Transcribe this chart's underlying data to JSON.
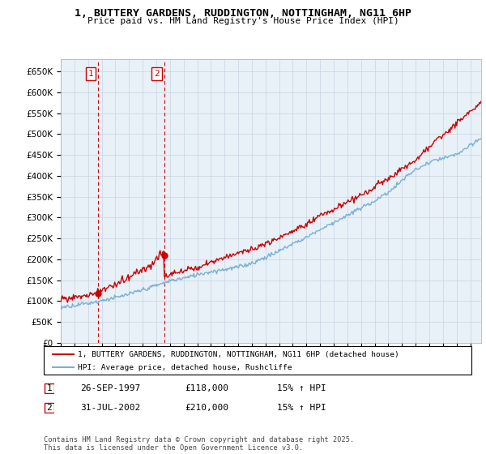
{
  "title": "1, BUTTERY GARDENS, RUDDINGTON, NOTTINGHAM, NG11 6HP",
  "subtitle": "Price paid vs. HM Land Registry's House Price Index (HPI)",
  "ylabel_ticks": [
    "£0",
    "£50K",
    "£100K",
    "£150K",
    "£200K",
    "£250K",
    "£300K",
    "£350K",
    "£400K",
    "£450K",
    "£500K",
    "£550K",
    "£600K",
    "£650K"
  ],
  "ytick_values": [
    0,
    50000,
    100000,
    150000,
    200000,
    250000,
    300000,
    350000,
    400000,
    450000,
    500000,
    550000,
    600000,
    650000
  ],
  "ylim": [
    0,
    680000
  ],
  "xlim_start": 1995.0,
  "xlim_end": 2025.8,
  "sale1_date": 1997.74,
  "sale1_price": 118000,
  "sale2_date": 2002.58,
  "sale2_price": 210000,
  "legend_line1": "1, BUTTERY GARDENS, RUDDINGTON, NOTTINGHAM, NG11 6HP (detached house)",
  "legend_line2": "HPI: Average price, detached house, Rushcliffe",
  "table_row1": [
    "1",
    "26-SEP-1997",
    "£118,000",
    "15% ↑ HPI"
  ],
  "table_row2": [
    "2",
    "31-JUL-2002",
    "£210,000",
    "15% ↑ HPI"
  ],
  "footer": "Contains HM Land Registry data © Crown copyright and database right 2025.\nThis data is licensed under the Open Government Licence v3.0.",
  "line_color_red": "#cc0000",
  "line_color_blue": "#7ab0d4",
  "bg_color": "#ffffff",
  "chart_bg": "#e8f0f8",
  "grid_color": "#c8d4e0",
  "vline_color": "#cc0000"
}
